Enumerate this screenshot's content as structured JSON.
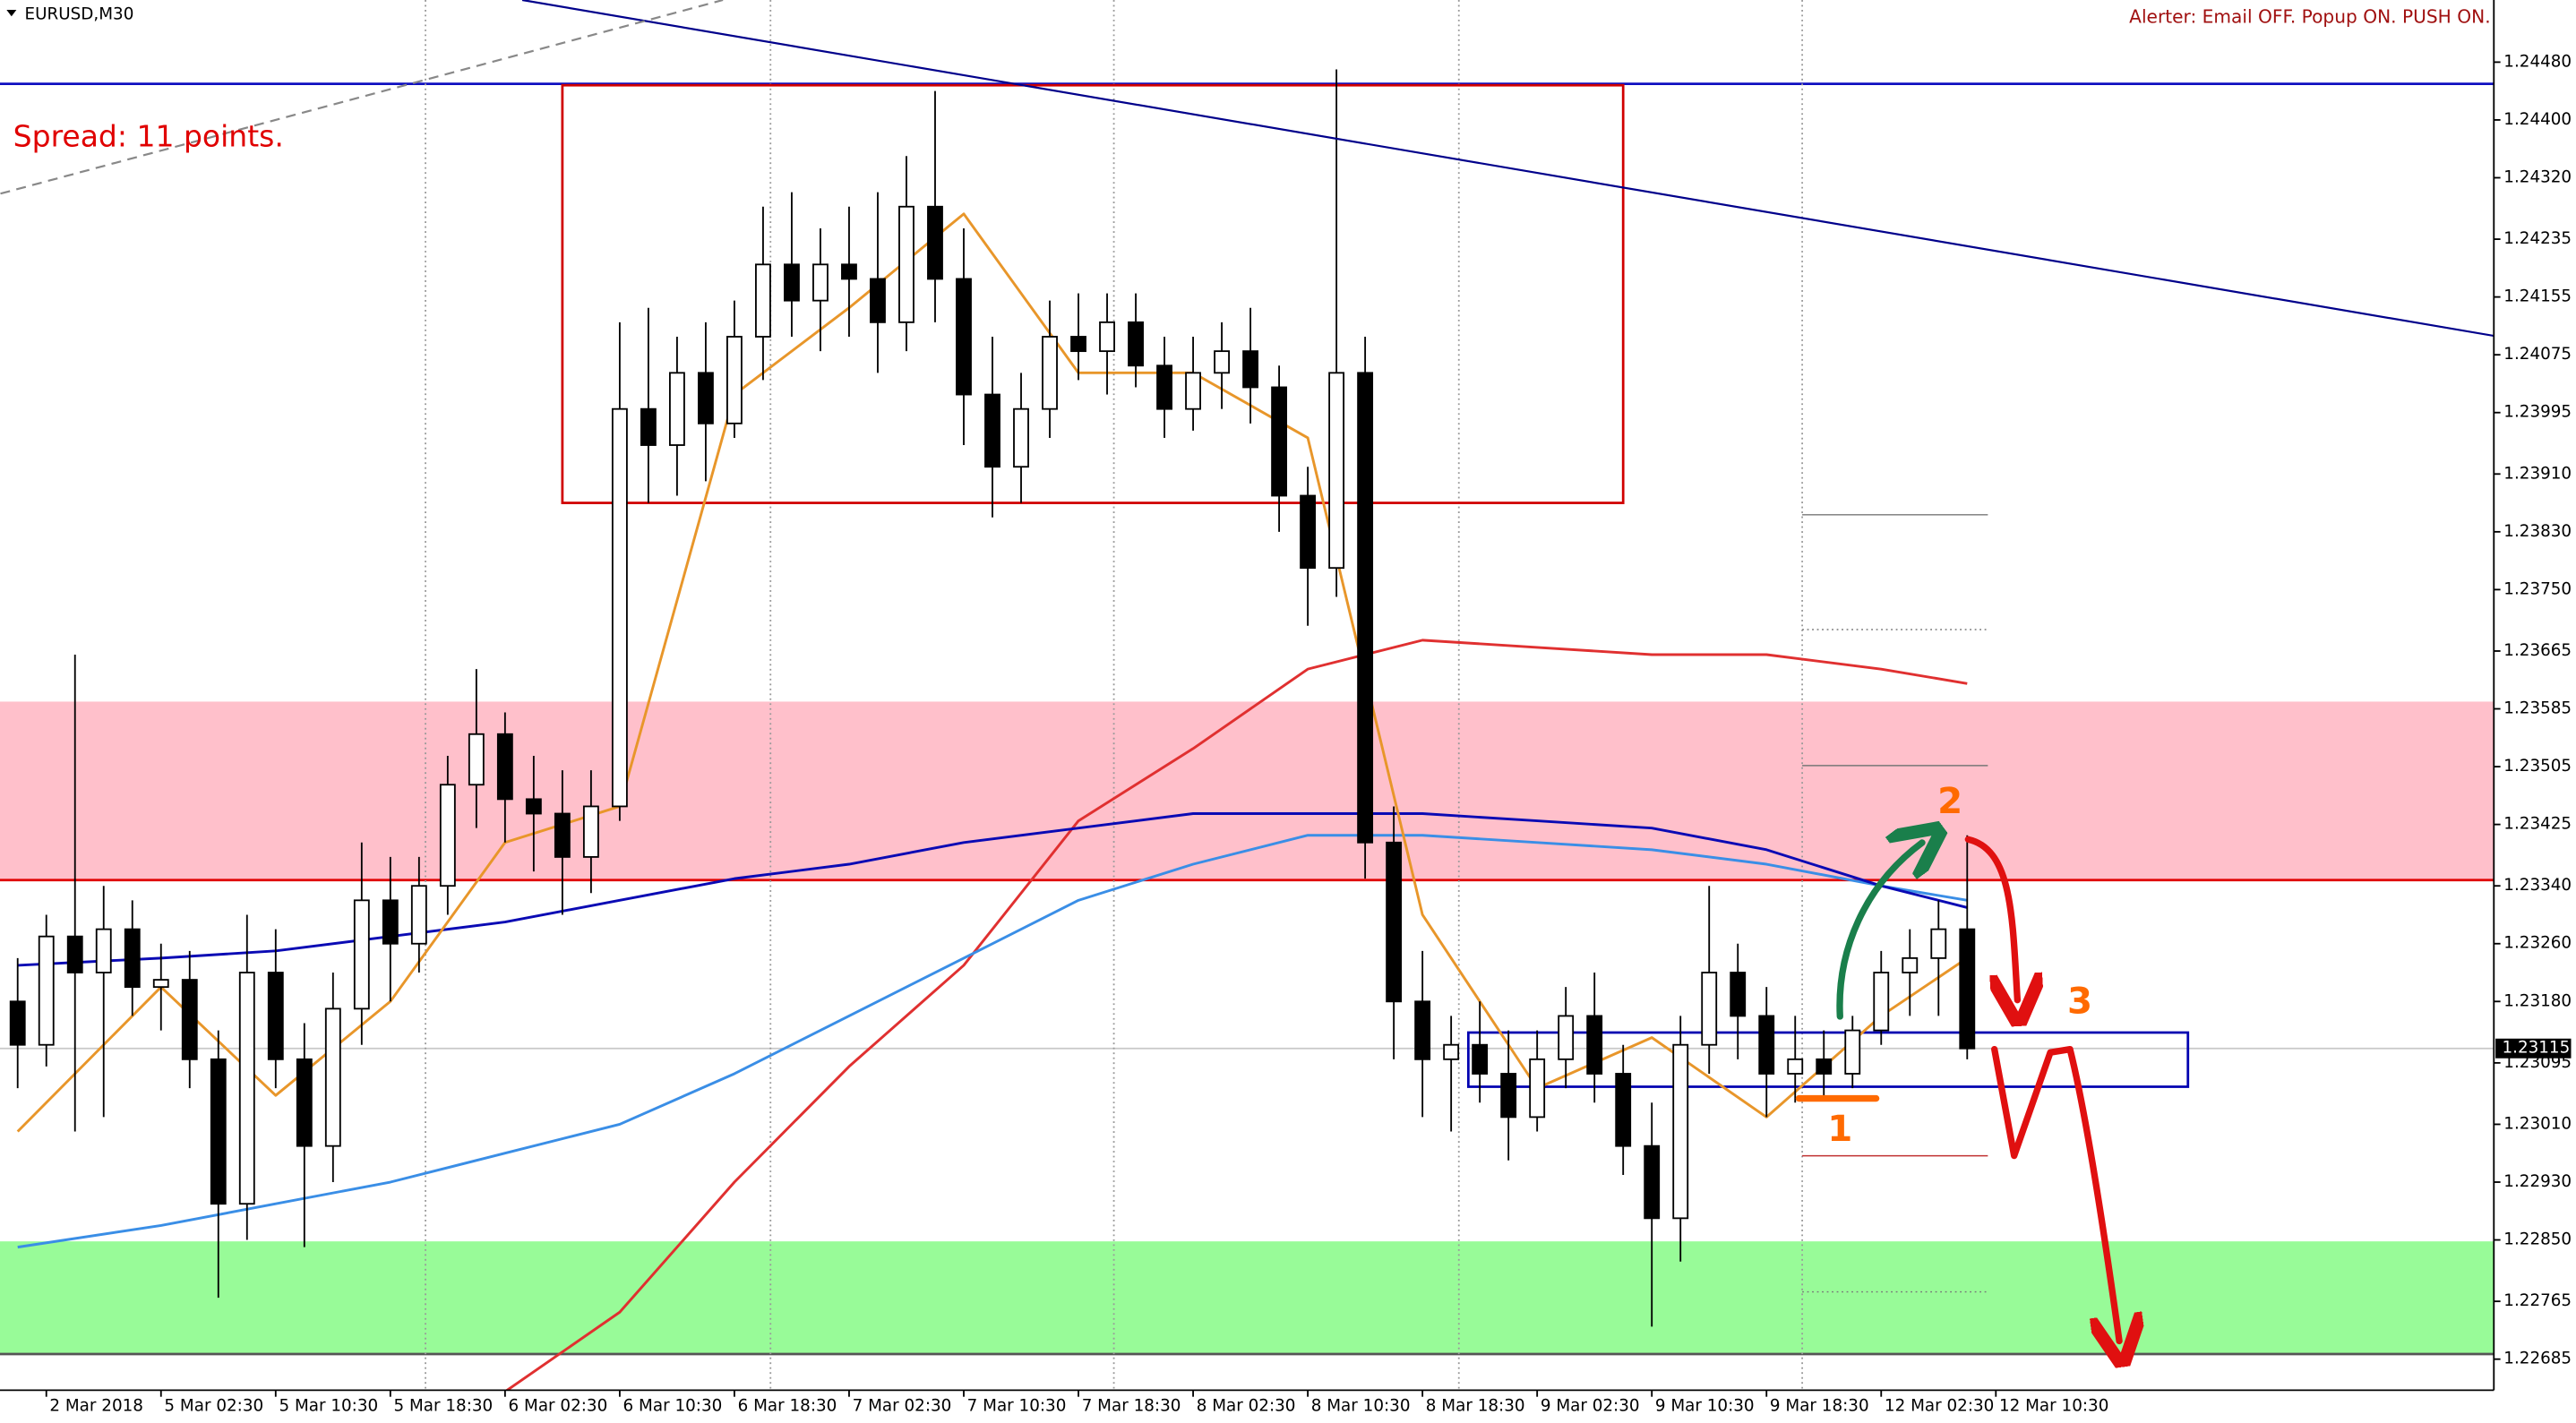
{
  "chart_data": {
    "type": "candlestick",
    "title": "EURUSD,M30",
    "alert_text": "Alerter:  Email OFF.  Popup ON.  PUSH ON.",
    "spread_text": "Spread: 11 points.",
    "annotations": [
      "1",
      "2",
      "3"
    ],
    "up_color": "#ffffff",
    "down_color": "#000000",
    "x": [
      -1,
      0,
      1,
      2,
      3,
      4,
      5,
      6,
      7,
      8,
      9,
      10,
      11,
      12,
      13,
      14,
      15,
      16,
      17,
      18,
      19,
      20,
      21,
      22,
      23,
      24,
      25,
      26,
      27,
      28,
      29,
      30,
      31,
      32,
      33,
      34,
      35,
      36,
      37,
      38,
      39,
      40,
      41,
      42,
      43,
      44,
      45,
      46,
      47,
      48,
      49,
      50,
      51,
      52,
      53,
      54,
      55,
      56,
      57,
      58,
      59,
      60,
      61,
      62,
      63,
      64,
      65,
      66,
      67
    ],
    "open": [
      1.2318,
      1.2312,
      1.2327,
      1.2322,
      1.2328,
      1.232,
      1.2321,
      1.231,
      1.229,
      1.2322,
      1.231,
      1.2298,
      1.2317,
      1.2332,
      1.2326,
      1.2334,
      1.2348,
      1.2355,
      1.2346,
      1.2344,
      1.2338,
      1.2345,
      1.24,
      1.2395,
      1.2405,
      1.2398,
      1.241,
      1.242,
      1.2415,
      1.242,
      1.2418,
      1.2412,
      1.2428,
      1.2418,
      1.2402,
      1.2392,
      1.24,
      1.241,
      1.2408,
      1.2412,
      1.2406,
      1.24,
      1.2405,
      1.2408,
      1.2403,
      1.2388,
      1.2378,
      1.2405,
      1.234,
      1.2318,
      1.231,
      1.2312,
      1.2308,
      1.2302,
      1.231,
      1.2316,
      1.2308,
      1.2298,
      1.2288,
      1.2312,
      1.2322,
      1.2316,
      1.2308,
      1.231,
      1.2308,
      1.2314,
      1.2322,
      1.2324,
      1.2328
    ],
    "high": [
      1.2324,
      1.233,
      1.2366,
      1.2334,
      1.2332,
      1.2326,
      1.2325,
      1.2314,
      1.233,
      1.2328,
      1.2315,
      1.2322,
      1.234,
      1.2338,
      1.2338,
      1.2352,
      1.2364,
      1.2358,
      1.2352,
      1.235,
      1.235,
      1.2412,
      1.2414,
      1.241,
      1.2412,
      1.2415,
      1.2428,
      1.243,
      1.2425,
      1.2428,
      1.243,
      1.2435,
      1.2444,
      1.2425,
      1.241,
      1.2405,
      1.2415,
      1.2416,
      1.2416,
      1.2416,
      1.241,
      1.241,
      1.2412,
      1.2414,
      1.2406,
      1.2392,
      1.2447,
      1.241,
      1.2345,
      1.2325,
      1.2316,
      1.2318,
      1.2314,
      1.2314,
      1.232,
      1.2322,
      1.2312,
      1.2304,
      1.2316,
      1.2334,
      1.2326,
      1.232,
      1.2316,
      1.2314,
      1.2316,
      1.2325,
      1.2328,
      1.2332,
      1.2341
    ],
    "low": [
      1.2306,
      1.2309,
      1.23,
      1.2302,
      1.2316,
      1.2314,
      1.2306,
      1.2277,
      1.2285,
      1.2306,
      1.2284,
      1.2293,
      1.2312,
      1.2318,
      1.2322,
      1.233,
      1.2342,
      1.234,
      1.2336,
      1.233,
      1.2333,
      1.2343,
      1.2387,
      1.2388,
      1.239,
      1.2396,
      1.2404,
      1.241,
      1.2408,
      1.241,
      1.2405,
      1.2408,
      1.2412,
      1.2395,
      1.2385,
      1.2387,
      1.2396,
      1.2404,
      1.2402,
      1.2403,
      1.2396,
      1.2397,
      1.24,
      1.2398,
      1.2383,
      1.237,
      1.2374,
      1.2335,
      1.231,
      1.2302,
      1.23,
      1.2304,
      1.2296,
      1.23,
      1.2306,
      1.2304,
      1.2294,
      1.2273,
      1.2282,
      1.2308,
      1.231,
      1.2302,
      1.2304,
      1.2305,
      1.2306,
      1.2312,
      1.2316,
      1.2316,
      1.231
    ],
    "close": [
      1.2312,
      1.2327,
      1.2322,
      1.2328,
      1.232,
      1.2321,
      1.231,
      1.229,
      1.2322,
      1.231,
      1.2298,
      1.2317,
      1.2332,
      1.2326,
      1.2334,
      1.2348,
      1.2355,
      1.2346,
      1.2344,
      1.2338,
      1.2345,
      1.24,
      1.2395,
      1.2405,
      1.2398,
      1.241,
      1.242,
      1.2415,
      1.242,
      1.2418,
      1.2412,
      1.2428,
      1.2418,
      1.2402,
      1.2392,
      1.24,
      1.241,
      1.2408,
      1.2412,
      1.2406,
      1.24,
      1.2405,
      1.2408,
      1.2403,
      1.2388,
      1.2378,
      1.2405,
      1.234,
      1.2318,
      1.231,
      1.2312,
      1.2308,
      1.2302,
      1.231,
      1.2316,
      1.2308,
      1.2298,
      1.2288,
      1.2312,
      1.2322,
      1.2316,
      1.2308,
      1.231,
      1.2308,
      1.2314,
      1.2322,
      1.2324,
      1.2328,
      1.23115
    ],
    "current_price": 1.23115,
    "indicators": [
      {
        "color": "#e03030",
        "x": [
          16,
          20,
          24,
          28,
          32,
          36,
          40,
          44,
          48,
          52,
          56,
          60,
          64,
          67
        ],
        "values": [
          1.2264,
          1.2275,
          1.2293,
          1.2309,
          1.2323,
          1.2343,
          1.2353,
          1.2364,
          1.2368,
          1.2367,
          1.2366,
          1.2366,
          1.2364,
          1.2362
        ]
      },
      {
        "color": "#3a8ee6",
        "x": [
          -1,
          4,
          8,
          12,
          16,
          20,
          24,
          28,
          32,
          36,
          40,
          44,
          48,
          52,
          56,
          60,
          64,
          67
        ],
        "values": [
          1.2284,
          1.2287,
          1.229,
          1.2293,
          1.2297,
          1.2301,
          1.2308,
          1.2316,
          1.2324,
          1.2332,
          1.2337,
          1.2341,
          1.2341,
          1.234,
          1.2339,
          1.2337,
          1.2334,
          1.2332
        ]
      },
      {
        "color": "#0a0ab4",
        "x": [
          -1,
          4,
          8,
          12,
          16,
          20,
          24,
          28,
          32,
          36,
          40,
          44,
          48,
          52,
          56,
          60,
          64,
          67
        ],
        "values": [
          1.2323,
          1.2324,
          1.2325,
          1.2327,
          1.2329,
          1.2332,
          1.2335,
          1.2337,
          1.234,
          1.2342,
          1.2344,
          1.2344,
          1.2344,
          1.2343,
          1.2342,
          1.2339,
          1.2334,
          1.2331
        ]
      },
      {
        "color": "#e8962a",
        "x": [
          -1,
          4,
          8,
          12,
          16,
          20,
          24,
          28,
          32,
          36,
          40,
          44,
          48,
          52,
          56,
          60,
          64,
          67
        ],
        "values": [
          1.23,
          1.232,
          1.2305,
          1.2318,
          1.234,
          1.2345,
          1.2402,
          1.2414,
          1.2427,
          1.2405,
          1.2405,
          1.2396,
          1.233,
          1.2306,
          1.2313,
          1.2302,
          1.2316,
          1.2324
        ]
      }
    ],
    "zones": [
      {
        "range": [
          1.23348,
          1.23595
        ],
        "color": "#ffc0cb"
      },
      {
        "range": [
          1.22692,
          1.22848
        ],
        "color": "#98fb98"
      }
    ],
    "levels": [
      {
        "value": 1.2445,
        "color": "#1010c0"
      },
      {
        "value": 1.23348,
        "color": "#e00000"
      },
      {
        "value": 1.22692,
        "color": "#555555"
      }
    ],
    "boxes": [
      {
        "x": [
          18,
          55
        ],
        "y": [
          1.2387,
          1.24448
        ],
        "color": "#d00000"
      },
      {
        "x": [
          49.6,
          74.7
        ],
        "y": [
          1.23062,
          1.23137
        ],
        "color": "#0000b0"
      }
    ],
    "trendlines": [
      {
        "x": [
          16.6,
          85.4
        ],
        "y": [
          1.24566,
          1.24101
        ],
        "color": "#00008b",
        "dashed": false
      },
      {
        "x": [
          -1.6,
          23.6
        ],
        "y": [
          1.24298,
          1.24566
        ],
        "color": "#888888",
        "dashed": true
      }
    ],
    "xlim": [
      -1.616,
      85.37
    ],
    "ylim": [
      1.22642,
      1.24566
    ],
    "xticks": [
      {
        "value": 0,
        "label": "2 Mar 2018"
      },
      {
        "value": 4,
        "label": "5 Mar 02:30"
      },
      {
        "value": 8,
        "label": "5 Mar 10:30"
      },
      {
        "value": 12,
        "label": "5 Mar 18:30"
      },
      {
        "value": 16,
        "label": "6 Mar 02:30"
      },
      {
        "value": 20,
        "label": "6 Mar 10:30"
      },
      {
        "value": 24,
        "label": "6 Mar 18:30"
      },
      {
        "value": 28,
        "label": "7 Mar 02:30"
      },
      {
        "value": 32,
        "label": "7 Mar 10:30"
      },
      {
        "value": 36,
        "label": "7 Mar 18:30"
      },
      {
        "value": 40,
        "label": "8 Mar 02:30"
      },
      {
        "value": 44,
        "label": "8 Mar 10:30"
      },
      {
        "value": 48,
        "label": "8 Mar 18:30"
      },
      {
        "value": 52,
        "label": "9 Mar 02:30"
      },
      {
        "value": 56,
        "label": "9 Mar 10:30"
      },
      {
        "value": 60,
        "label": "9 Mar 18:30"
      },
      {
        "value": 64,
        "label": "12 Mar 02:30"
      },
      {
        "value": 68,
        "label": "12 Mar 10:30"
      }
    ],
    "yticks": [
      {
        "value": 1.2448,
        "label": "1.24480"
      },
      {
        "value": 1.244,
        "label": "1.24400"
      },
      {
        "value": 1.2432,
        "label": "1.24320"
      },
      1.24235,
      1.24155,
      1.24075,
      1.23995,
      {
        "value": 1.2391,
        "label": "1.23910"
      },
      {
        "value": 1.2383,
        "label": "1.23830"
      },
      {
        "value": 1.2375,
        "label": "1.23750"
      },
      1.23665,
      1.23585,
      1.23505,
      1.23425,
      {
        "value": 1.2334,
        "label": "1.23340"
      },
      {
        "value": 1.2326,
        "label": "1.23260"
      },
      {
        "value": 1.2318,
        "label": "1.23180"
      },
      1.23095,
      {
        "value": 1.2301,
        "label": "1.23010"
      },
      {
        "value": 1.2293,
        "label": "1.22930"
      },
      {
        "value": 1.2285,
        "label": "1.22850"
      },
      1.22765,
      1.22685
    ]
  }
}
